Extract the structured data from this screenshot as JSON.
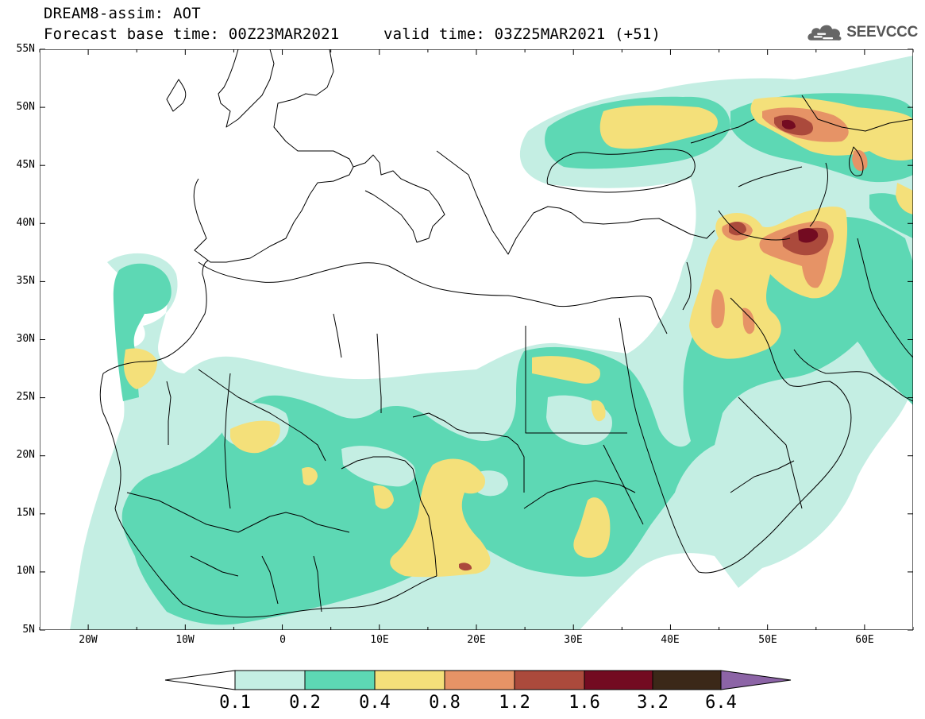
{
  "header": {
    "line1": "DREAM8-assim: AOT",
    "line2_left": "Forecast base time: 00Z23MAR2021",
    "line2_right": "valid time: 03Z25MAR2021 (+51)"
  },
  "logo": {
    "icon": "cloud-icon",
    "text": "SEEVCCC"
  },
  "map": {
    "lon_range": [
      -25,
      65
    ],
    "lat_range": [
      5,
      55
    ],
    "lat_ticks": [
      "55N",
      "50N",
      "45N",
      "40N",
      "35N",
      "30N",
      "25N",
      "20N",
      "15N",
      "10N",
      "5N"
    ],
    "lon_ticks": [
      "20W",
      "10W",
      "0",
      "10E",
      "20E",
      "30E",
      "40E",
      "50E",
      "60E"
    ]
  },
  "colorbar": {
    "labels": [
      "0.1",
      "0.2",
      "0.4",
      "0.8",
      "1.2",
      "1.6",
      "3.2",
      "6.4"
    ],
    "colors": {
      "under": "#ffffff",
      "c1": "#c4eee3",
      "c2": "#5dd8b4",
      "c3": "#f4e07a",
      "c4": "#e69366",
      "c5": "#ab4a3c",
      "c6": "#730b21",
      "c7": "#3b2818",
      "over": "#8c64a6"
    }
  }
}
